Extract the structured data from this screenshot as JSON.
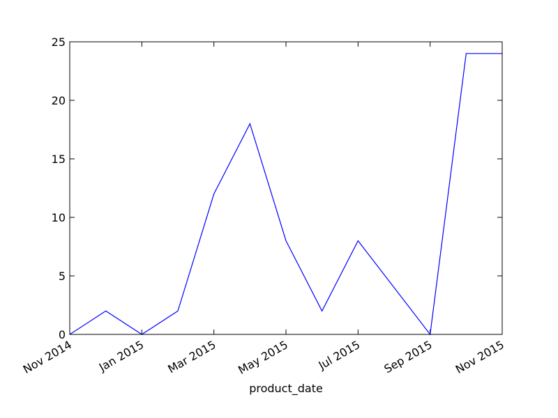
{
  "chart_data": {
    "type": "line",
    "title": "",
    "xlabel": "product_date",
    "ylabel": "",
    "x": [
      "2014-11",
      "2014-12",
      "2015-01",
      "2015-02",
      "2015-03",
      "2015-04",
      "2015-05",
      "2015-06",
      "2015-07",
      "2015-08",
      "2015-09",
      "2015-10",
      "2015-11"
    ],
    "series": [
      {
        "values": [
          0,
          2,
          0,
          2,
          12,
          18,
          8,
          2,
          8,
          4,
          0,
          24,
          24
        ]
      }
    ],
    "ylim": [
      0,
      25
    ],
    "yticks": [
      0,
      5,
      10,
      15,
      20,
      25
    ],
    "ytick_labels": [
      "0",
      "5",
      "10",
      "15",
      "20",
      "25"
    ],
    "xticks": [
      "2014-11",
      "2015-01",
      "2015-03",
      "2015-05",
      "2015-07",
      "2015-09",
      "2015-11"
    ],
    "xtick_labels": [
      "Nov 2014",
      "Jan 2015",
      "Mar 2015",
      "May 2015",
      "Jul 2015",
      "Sep 2015",
      "Nov 2015"
    ],
    "line_color": "#0000ff",
    "grid": false,
    "legend": "none"
  }
}
